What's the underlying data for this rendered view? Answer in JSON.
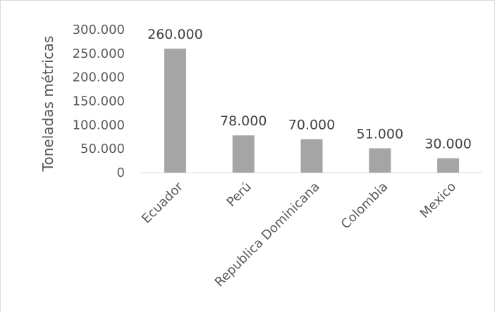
{
  "chart_data": {
    "type": "bar",
    "categories": [
      "Ecuador",
      "Perú",
      "Republica Dominicana",
      "Colombia",
      "Mexico"
    ],
    "values": [
      260000,
      78000,
      70000,
      51000,
      30000
    ],
    "value_labels": [
      "260.000",
      "78.000",
      "70.000",
      "51.000",
      "30.000"
    ],
    "ylabel": "Toneladas métricas",
    "xlabel": "",
    "title": "",
    "ylim": [
      0,
      300000
    ],
    "yticks": [
      0,
      50000,
      100000,
      150000,
      200000,
      250000,
      300000
    ],
    "ytick_labels": [
      "0",
      "50.000",
      "100.000",
      "150.000",
      "200.000",
      "250.000",
      "300.000"
    ],
    "bar_color": "#a5a5a5",
    "axis_color": "#d9d9d9",
    "grid": false,
    "legend": "none"
  }
}
